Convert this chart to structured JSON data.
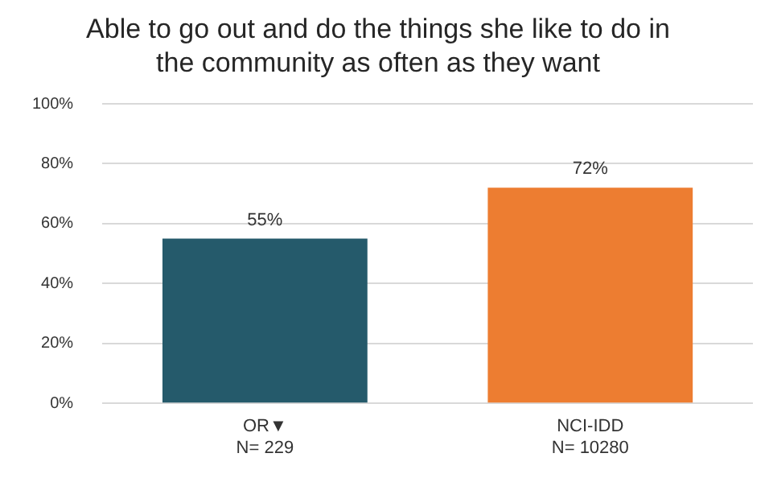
{
  "chart_data": {
    "type": "bar",
    "title": "Able to go out and do the things she like to do in\nthe community as often as they want",
    "categories": [
      "OR▼\nN= 229",
      "NCI-IDD\nN= 10280"
    ],
    "values": [
      55,
      72
    ],
    "colors": [
      "#255a6b",
      "#ed7d31"
    ],
    "value_labels": [
      "55%",
      "72%"
    ],
    "ylim": [
      0,
      100
    ],
    "yticks": [
      {
        "value": 0,
        "label": "0%"
      },
      {
        "value": 20,
        "label": "20%"
      },
      {
        "value": 40,
        "label": "40%"
      },
      {
        "value": 60,
        "label": "60%"
      },
      {
        "value": 80,
        "label": "80%"
      },
      {
        "value": 100,
        "label": "100%"
      }
    ],
    "grid": "y",
    "legend": false
  }
}
